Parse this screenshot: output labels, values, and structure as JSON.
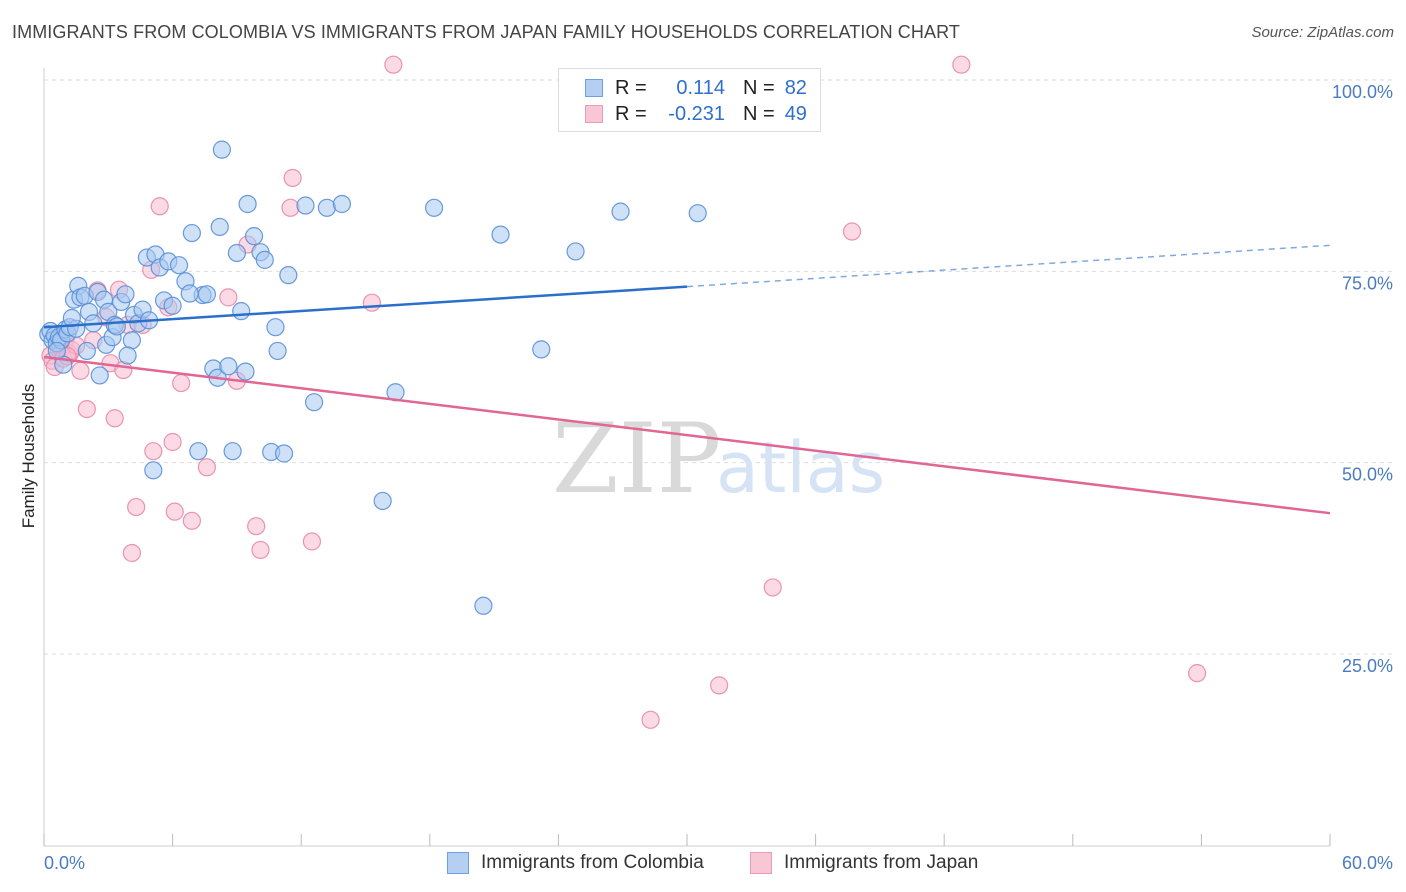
{
  "title": "IMMIGRANTS FROM COLOMBIA VS IMMIGRANTS FROM JAPAN FAMILY HOUSEHOLDS CORRELATION CHART",
  "source": "Source: ZipAtlas.com",
  "watermark": {
    "zip": "ZIP",
    "atlas": "atlas"
  },
  "legend": {
    "rows": [
      {
        "r_label": "R =",
        "r_value": "0.114",
        "n_label": "N =",
        "n_value": "82",
        "color": "#6e9fe0"
      },
      {
        "r_label": "R =",
        "r_value": "-0.231",
        "n_label": "N =",
        "n_value": "49",
        "color": "#ef9ab5"
      }
    ]
  },
  "colors": {
    "colombia_fill": "#a8c8f0",
    "colombia_stroke": "#5a8fd8",
    "colombia_line": "#2a6fcc",
    "japan_fill": "#f7bcd0",
    "japan_stroke": "#e88aaa",
    "japan_line": "#e06694",
    "grid": "#dddddd",
    "axis_text": "#4a7cc0"
  },
  "chart_data": {
    "type": "scatter",
    "title": "IMMIGRANTS FROM COLOMBIA VS IMMIGRANTS FROM JAPAN FAMILY HOUSEHOLDS CORRELATION CHART",
    "xlabel": "",
    "ylabel": "Family Households",
    "xlim": [
      0,
      60
    ],
    "ylim": [
      0,
      102
    ],
    "x_tick_labels": [
      "0.0%",
      "60.0%"
    ],
    "y_ticks": [
      25,
      50,
      75,
      100
    ],
    "y_tick_labels": [
      "25.0%",
      "50.0%",
      "75.0%",
      "100.0%"
    ],
    "legend_position": "top-center",
    "series": [
      {
        "name": "Immigrants from Colombia",
        "r": 0.114,
        "n": 82,
        "trend": {
          "x0": 0,
          "y0": 67.7,
          "x1": 30,
          "y1": 73.0,
          "dash_x1": 60,
          "dash_y1": 78.4
        },
        "points": [
          [
            0.2,
            66.8
          ],
          [
            0.3,
            67.2
          ],
          [
            0.4,
            66.0
          ],
          [
            0.5,
            66.6
          ],
          [
            0.6,
            65.6
          ],
          [
            0.7,
            66.4
          ],
          [
            0.8,
            66.0
          ],
          [
            0.9,
            62.8
          ],
          [
            1.0,
            67.4
          ],
          [
            1.1,
            66.9
          ],
          [
            1.2,
            67.7
          ],
          [
            1.4,
            71.3
          ],
          [
            1.5,
            67.5
          ],
          [
            1.6,
            73.1
          ],
          [
            1.7,
            71.6
          ],
          [
            1.9,
            71.8
          ],
          [
            2.1,
            69.7
          ],
          [
            2.3,
            68.2
          ],
          [
            2.5,
            72.3
          ],
          [
            2.6,
            61.4
          ],
          [
            2.8,
            71.3
          ],
          [
            2.9,
            65.4
          ],
          [
            3.0,
            69.7
          ],
          [
            3.2,
            66.4
          ],
          [
            3.3,
            68.0
          ],
          [
            3.4,
            67.8
          ],
          [
            3.6,
            71.0
          ],
          [
            3.8,
            72.0
          ],
          [
            4.1,
            66.0
          ],
          [
            4.2,
            69.3
          ],
          [
            4.4,
            68.2
          ],
          [
            4.6,
            70.0
          ],
          [
            4.8,
            76.8
          ],
          [
            5.1,
            49.0
          ],
          [
            5.2,
            77.2
          ],
          [
            5.4,
            75.5
          ],
          [
            5.6,
            71.2
          ],
          [
            5.8,
            76.3
          ],
          [
            6.0,
            70.5
          ],
          [
            6.3,
            75.8
          ],
          [
            6.6,
            73.7
          ],
          [
            6.9,
            80.0
          ],
          [
            7.2,
            51.5
          ],
          [
            7.4,
            71.9
          ],
          [
            7.6,
            72.0
          ],
          [
            7.9,
            62.3
          ],
          [
            8.1,
            61.1
          ],
          [
            8.2,
            80.8
          ],
          [
            8.3,
            90.9
          ],
          [
            8.6,
            62.6
          ],
          [
            8.8,
            51.5
          ],
          [
            9.0,
            77.4
          ],
          [
            9.4,
            61.9
          ],
          [
            9.5,
            83.8
          ],
          [
            9.8,
            79.6
          ],
          [
            10.1,
            77.5
          ],
          [
            10.3,
            76.5
          ],
          [
            10.6,
            51.4
          ],
          [
            10.8,
            67.7
          ],
          [
            10.9,
            64.6
          ],
          [
            11.2,
            51.2
          ],
          [
            11.4,
            74.5
          ],
          [
            12.2,
            83.6
          ],
          [
            12.6,
            57.9
          ],
          [
            13.2,
            83.3
          ],
          [
            13.9,
            83.8
          ],
          [
            15.8,
            45.0
          ],
          [
            16.4,
            59.2
          ],
          [
            18.2,
            83.3
          ],
          [
            20.5,
            31.3
          ],
          [
            21.3,
            79.8
          ],
          [
            23.2,
            64.8
          ],
          [
            24.8,
            77.6
          ],
          [
            26.9,
            82.8
          ],
          [
            30.5,
            82.6
          ],
          [
            1.3,
            68.9
          ],
          [
            2.0,
            64.6
          ],
          [
            3.9,
            64.0
          ],
          [
            6.8,
            72.1
          ],
          [
            0.6,
            64.6
          ],
          [
            4.9,
            68.6
          ],
          [
            9.2,
            69.8
          ]
        ]
      },
      {
        "name": "Immigrants from Japan",
        "r": -0.231,
        "n": 49,
        "trend": {
          "x0": 0,
          "y0": 63.8,
          "x1": 60,
          "y1": 43.4
        },
        "points": [
          [
            0.3,
            64.0
          ],
          [
            0.4,
            63.3
          ],
          [
            0.5,
            62.5
          ],
          [
            0.7,
            64.8
          ],
          [
            0.8,
            65.0
          ],
          [
            0.9,
            63.6
          ],
          [
            1.0,
            66.0
          ],
          [
            1.2,
            64.2
          ],
          [
            1.3,
            64.7
          ],
          [
            1.5,
            65.3
          ],
          [
            1.7,
            62.0
          ],
          [
            2.0,
            57.0
          ],
          [
            2.3,
            66.0
          ],
          [
            2.5,
            72.5
          ],
          [
            2.9,
            69.0
          ],
          [
            3.1,
            63.0
          ],
          [
            3.3,
            55.8
          ],
          [
            3.5,
            72.6
          ],
          [
            3.7,
            62.1
          ],
          [
            3.9,
            68.0
          ],
          [
            4.1,
            38.2
          ],
          [
            4.3,
            44.2
          ],
          [
            4.6,
            68.0
          ],
          [
            5.0,
            75.2
          ],
          [
            5.1,
            51.5
          ],
          [
            5.4,
            83.5
          ],
          [
            5.8,
            70.3
          ],
          [
            6.0,
            52.7
          ],
          [
            6.1,
            43.6
          ],
          [
            6.4,
            60.4
          ],
          [
            6.9,
            42.4
          ],
          [
            7.6,
            49.4
          ],
          [
            8.6,
            71.6
          ],
          [
            9.0,
            60.7
          ],
          [
            9.5,
            78.5
          ],
          [
            9.9,
            41.7
          ],
          [
            10.1,
            38.6
          ],
          [
            11.5,
            83.3
          ],
          [
            11.6,
            87.2
          ],
          [
            12.5,
            39.7
          ],
          [
            15.3,
            70.9
          ],
          [
            16.3,
            102.0
          ],
          [
            28.3,
            16.4
          ],
          [
            31.5,
            20.9
          ],
          [
            34.0,
            33.7
          ],
          [
            37.7,
            80.2
          ],
          [
            42.8,
            102.0
          ],
          [
            53.8,
            22.5
          ],
          [
            1.1,
            63.9
          ]
        ]
      }
    ]
  }
}
